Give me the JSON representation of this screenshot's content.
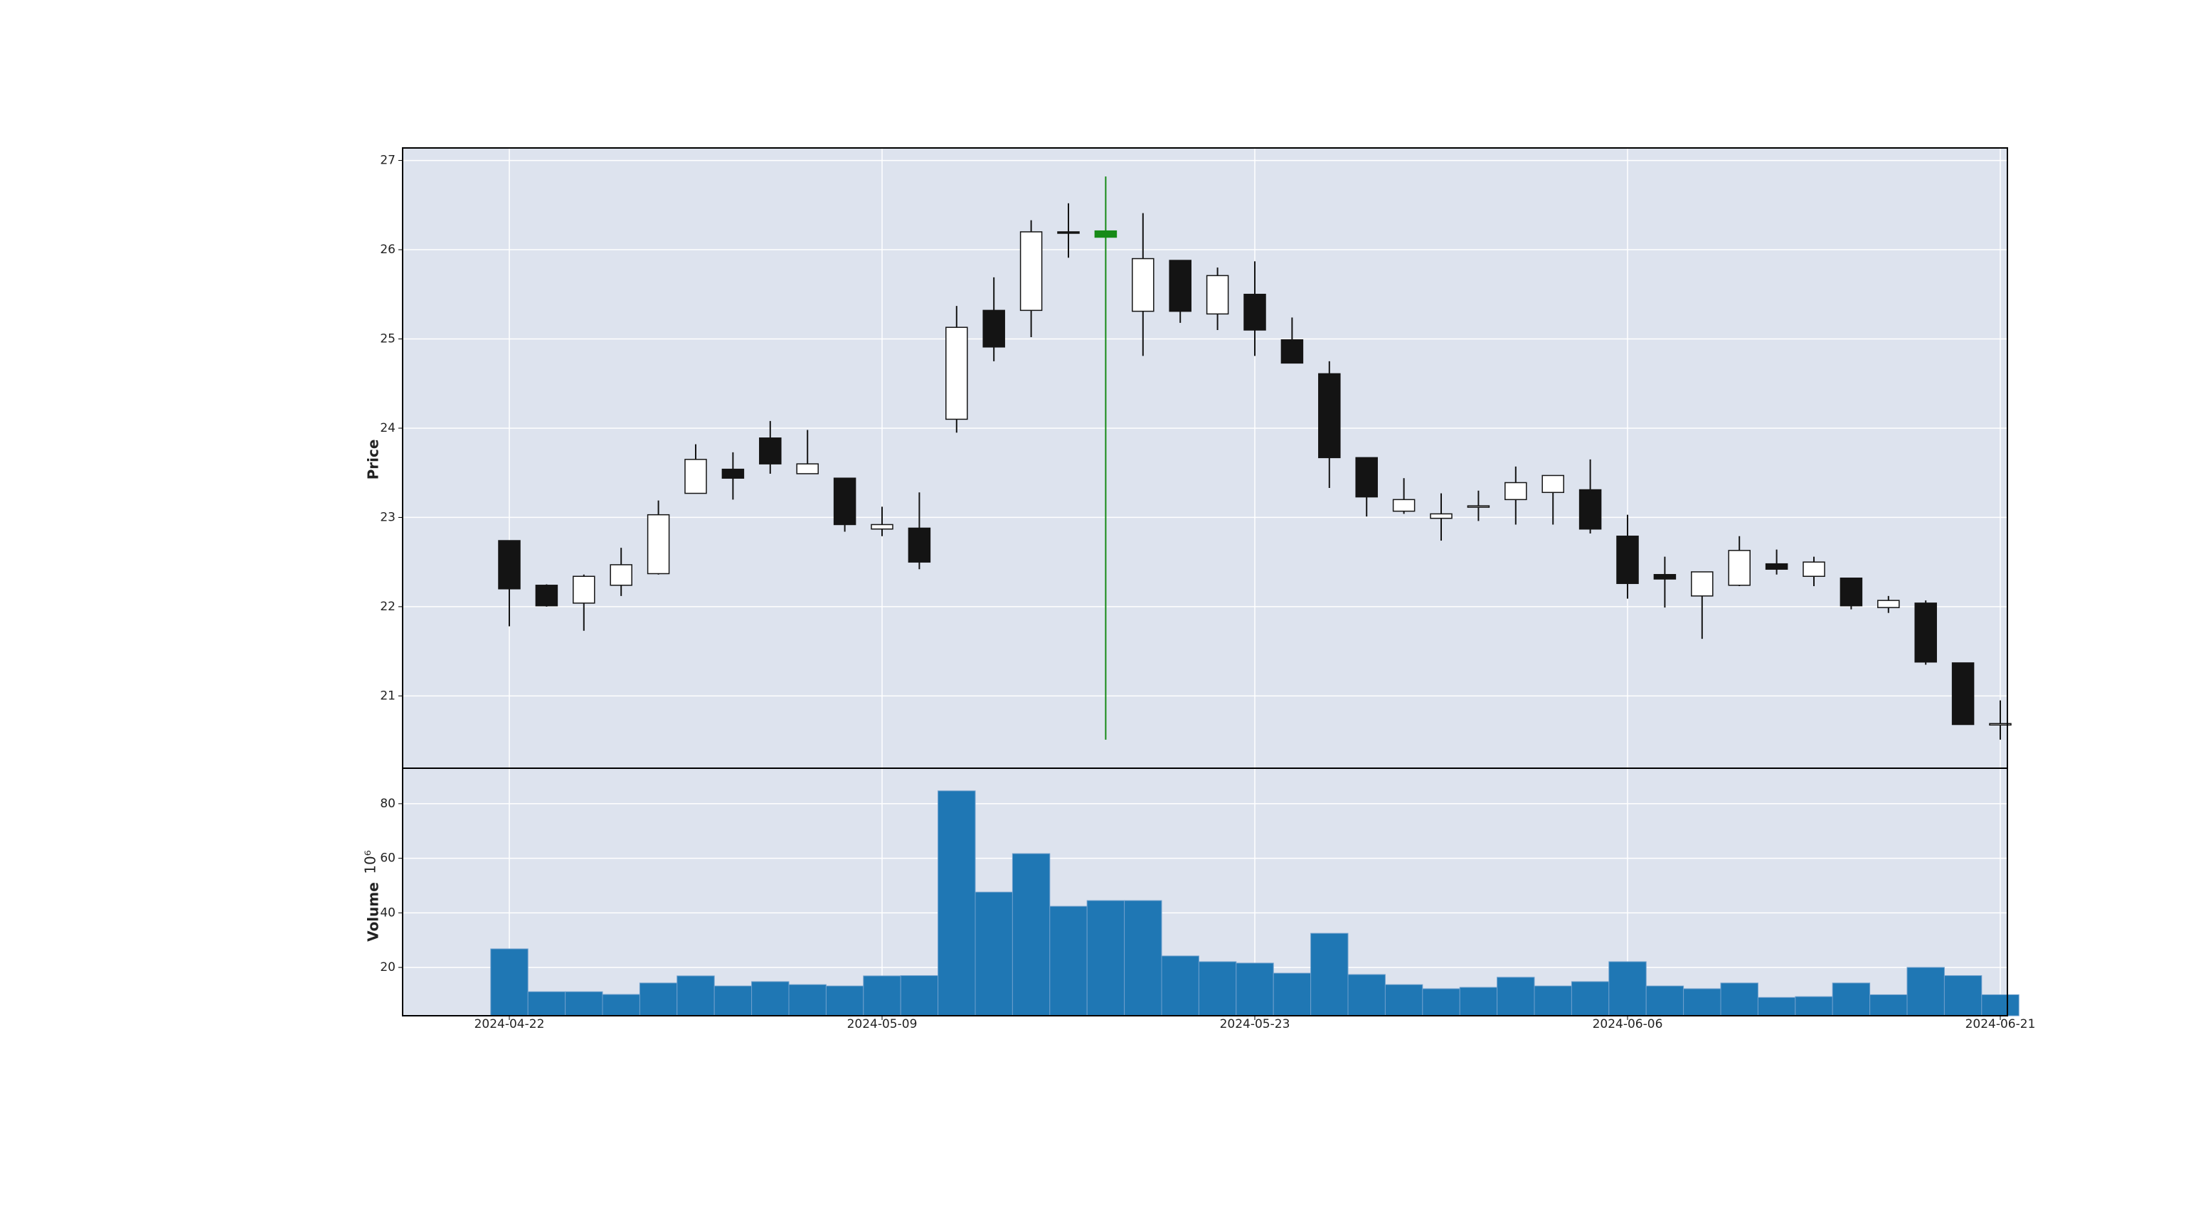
{
  "chart_data": [
    {
      "type": "candlestick",
      "ylabel": "Price",
      "open": [
        22.74,
        22.24,
        22.04,
        22.24,
        22.37,
        23.27,
        23.54,
        23.89,
        23.49,
        23.44,
        22.87,
        22.88,
        24.1,
        25.32,
        25.32,
        26.2,
        26.21,
        25.31,
        25.88,
        25.28,
        25.5,
        24.99,
        24.61,
        23.67,
        23.07,
        22.99,
        23.12,
        23.2,
        23.28,
        23.31,
        22.79,
        22.36,
        22.12,
        22.24,
        22.48,
        22.34,
        22.32,
        21.99,
        22.04,
        21.37,
        20.68
      ],
      "high": [
        22.74,
        22.25,
        22.36,
        22.66,
        23.19,
        23.82,
        23.73,
        24.08,
        23.98,
        23.44,
        23.12,
        23.28,
        25.37,
        25.69,
        26.33,
        26.52,
        26.82,
        26.41,
        25.88,
        25.8,
        25.87,
        25.24,
        24.75,
        23.67,
        23.44,
        23.27,
        23.3,
        23.57,
        23.47,
        23.65,
        23.03,
        22.56,
        22.39,
        22.79,
        22.64,
        22.56,
        22.32,
        22.12,
        22.07,
        21.37,
        20.95
      ],
      "low": [
        21.78,
        22.0,
        21.73,
        22.12,
        22.36,
        23.27,
        23.2,
        23.49,
        23.49,
        22.84,
        22.79,
        22.42,
        23.95,
        24.75,
        25.02,
        25.91,
        20.51,
        24.81,
        25.18,
        25.1,
        24.81,
        24.73,
        23.33,
        23.01,
        23.04,
        22.74,
        22.96,
        22.92,
        22.92,
        22.82,
        22.09,
        21.99,
        21.64,
        22.23,
        22.36,
        22.23,
        21.97,
        21.93,
        21.35,
        20.68,
        20.51
      ],
      "close": [
        22.2,
        22.01,
        22.34,
        22.47,
        23.03,
        23.65,
        23.44,
        23.6,
        23.6,
        22.92,
        22.92,
        22.5,
        25.13,
        24.91,
        26.2,
        26.19,
        26.14,
        25.9,
        25.31,
        25.71,
        25.1,
        24.73,
        23.67,
        23.23,
        23.2,
        23.04,
        23.13,
        23.39,
        23.47,
        22.87,
        22.26,
        22.31,
        22.39,
        22.63,
        22.42,
        22.5,
        22.01,
        22.07,
        21.38,
        20.68,
        20.69
      ],
      "up_color": "#ffffff",
      "down_color": "#141414",
      "highlight_index": 16,
      "highlight_color": "#178a17",
      "ylim": [
        20.19,
        27.14
      ],
      "yticks": [
        21,
        22,
        23,
        24,
        25,
        26,
        27
      ],
      "grid": true
    },
    {
      "type": "bar",
      "ylabel": "Volume",
      "ylabel_scale": "10⁶",
      "categories": [
        "2024-04-22",
        null,
        null,
        null,
        null,
        null,
        null,
        null,
        null,
        null,
        "2024-05-09",
        null,
        null,
        null,
        null,
        null,
        null,
        null,
        null,
        null,
        "2024-05-23",
        null,
        null,
        null,
        null,
        null,
        null,
        null,
        null,
        null,
        "2024-06-06",
        null,
        null,
        null,
        null,
        null,
        null,
        null,
        null,
        null,
        "2024-06-21"
      ],
      "values": [
        26.8,
        11.1,
        11.1,
        10.1,
        14.3,
        16.9,
        13.2,
        14.8,
        13.7,
        13.2,
        16.9,
        17.0,
        84.7,
        47.6,
        61.7,
        42.4,
        44.5,
        44.5,
        24.2,
        22.1,
        21.6,
        17.9,
        32.5,
        17.4,
        13.7,
        12.2,
        12.7,
        16.4,
        13.2,
        14.8,
        22.1,
        13.2,
        12.2,
        14.3,
        9.0,
        9.3,
        14.3,
        10.0,
        20.0,
        17.0,
        10.0
      ],
      "color": "#1f77b4",
      "ylim": [
        2.3,
        93
      ],
      "yticks": [
        20,
        40,
        60,
        80
      ],
      "grid": true
    }
  ]
}
